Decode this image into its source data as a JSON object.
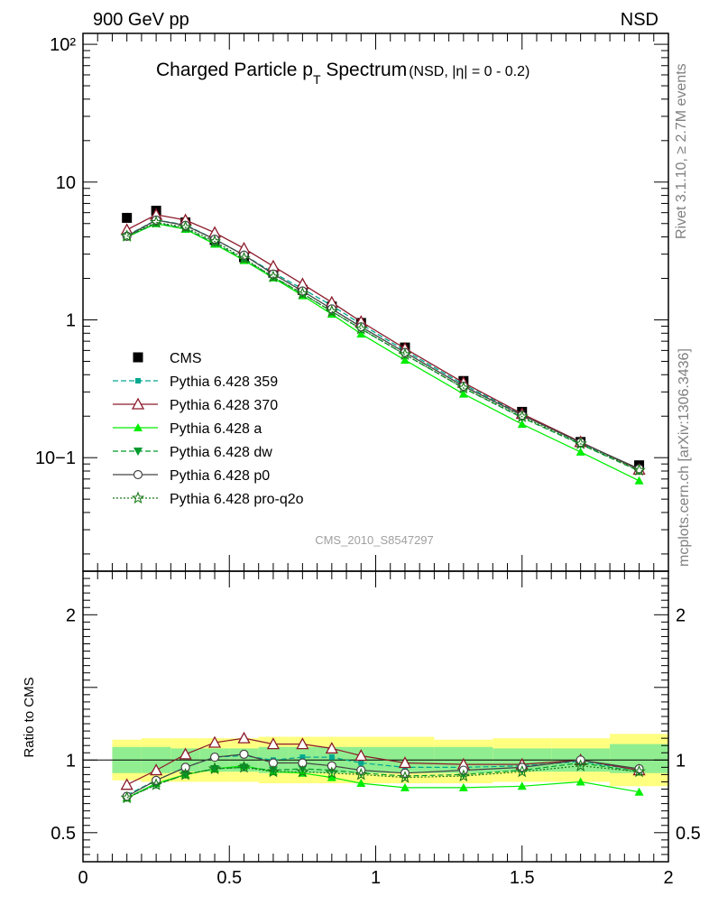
{
  "header": {
    "left": "900 GeV pp",
    "right": "NSD"
  },
  "side_text": {
    "rivet": "Rivet 3.1.10, ≥ 2.7M events",
    "mcplots": "mcplots.cern.ch [arXiv:1306.3436]"
  },
  "chart_data": [
    {
      "type": "scatter",
      "title": "Charged Particle p_T Spectrum",
      "title_parts": {
        "main": "Charged Particle p",
        "sub": "T",
        "tail": " Spectrum",
        "qualifier": "(NSD, |η| =    0 - 0.2)"
      },
      "watermark": "CMS_2010_S8547297",
      "xlabel": "",
      "ylabel": "",
      "yscale": "log",
      "xlim": [
        0,
        2
      ],
      "ylim": [
        0.015,
        120
      ],
      "y_tick_labels": [
        "10−1",
        "1",
        "10",
        "10²"
      ],
      "x": [
        0.15,
        0.25,
        0.35,
        0.45,
        0.55,
        0.65,
        0.75,
        0.85,
        0.95,
        1.1,
        1.3,
        1.5,
        1.7,
        1.9
      ],
      "series": [
        {
          "name": "CMS",
          "style": "data",
          "color": "#000000",
          "values": [
            5.5,
            6.2,
            5.1,
            3.8,
            2.85,
            2.2,
            1.65,
            1.25,
            0.95,
            0.63,
            0.36,
            0.215,
            0.13,
            0.088
          ]
        },
        {
          "name": "Pythia 6.428 359",
          "style": "square-dashed",
          "color": "#00a88f",
          "values": [
            4.1,
            5.3,
            4.9,
            3.85,
            2.95,
            2.2,
            1.68,
            1.27,
            0.93,
            0.6,
            0.34,
            0.205,
            0.128,
            0.082
          ]
        },
        {
          "name": "Pythia 6.428 370",
          "style": "open-triangle-solid",
          "color": "#8b1a2a",
          "values": [
            4.5,
            5.8,
            5.3,
            4.3,
            3.3,
            2.45,
            1.82,
            1.34,
            0.97,
            0.62,
            0.35,
            0.208,
            0.13,
            0.082
          ]
        },
        {
          "name": "Pythia 6.428 a",
          "style": "triangle-solid",
          "color": "#00ee00",
          "values": [
            4.0,
            5.0,
            4.55,
            3.55,
            2.7,
            2.02,
            1.5,
            1.1,
            0.79,
            0.51,
            0.29,
            0.175,
            0.11,
            0.068
          ]
        },
        {
          "name": "Pythia 6.428 dw",
          "style": "down-triangle-dashed",
          "color": "#009a2e",
          "values": [
            4.0,
            5.05,
            4.6,
            3.6,
            2.75,
            2.05,
            1.55,
            1.15,
            0.86,
            0.56,
            0.32,
            0.195,
            0.125,
            0.08
          ]
        },
        {
          "name": "Pythia 6.428 p0",
          "style": "open-circle-solid",
          "color": "#444444",
          "values": [
            4.05,
            5.3,
            4.85,
            3.85,
            2.95,
            2.15,
            1.62,
            1.2,
            0.89,
            0.58,
            0.33,
            0.203,
            0.129,
            0.083
          ]
        },
        {
          "name": "Pythia 6.428 pro-q2o",
          "style": "open-star-dotted",
          "color": "#1a7a1a",
          "values": [
            4.05,
            5.1,
            4.7,
            3.7,
            2.8,
            2.05,
            1.55,
            1.15,
            0.86,
            0.56,
            0.32,
            0.198,
            0.126,
            0.081
          ]
        }
      ]
    },
    {
      "type": "line",
      "title": "",
      "xlabel": "",
      "ylabel": "Ratio to CMS",
      "xlim": [
        0,
        2
      ],
      "ylim": [
        0.3,
        2.3
      ],
      "x_ticks": [
        0,
        0.5,
        1,
        1.5,
        2
      ],
      "x_tick_labels": [
        "0",
        "0.5",
        "1",
        "1.5",
        "2"
      ],
      "y_ticks": [
        0.5,
        1,
        2
      ],
      "y_tick_labels": [
        "0.5",
        "1",
        "2"
      ],
      "reference_line": 1,
      "uncertainty_bands": {
        "bins": [
          [
            0.1,
            0.2
          ],
          [
            0.2,
            0.3
          ],
          [
            0.3,
            0.4
          ],
          [
            0.4,
            0.5
          ],
          [
            0.5,
            0.6
          ],
          [
            0.6,
            0.7
          ],
          [
            0.7,
            0.8
          ],
          [
            0.8,
            0.9
          ],
          [
            0.9,
            1.0
          ],
          [
            1.0,
            1.2
          ],
          [
            1.2,
            1.4
          ],
          [
            1.4,
            1.6
          ],
          [
            1.6,
            1.8
          ],
          [
            1.8,
            2.0
          ]
        ],
        "stat_color": "#90ee90",
        "total_color": "#ffff80",
        "stat_low": [
          0.91,
          0.91,
          0.92,
          0.92,
          0.92,
          0.91,
          0.91,
          0.91,
          0.91,
          0.91,
          0.91,
          0.92,
          0.92,
          0.91
        ],
        "stat_high": [
          1.09,
          1.09,
          1.08,
          1.08,
          1.08,
          1.09,
          1.09,
          1.09,
          1.09,
          1.09,
          1.09,
          1.08,
          1.08,
          1.11
        ],
        "total_low": [
          0.86,
          0.85,
          0.85,
          0.85,
          0.85,
          0.84,
          0.84,
          0.84,
          0.84,
          0.84,
          0.84,
          0.85,
          0.85,
          0.82
        ],
        "total_high": [
          1.14,
          1.15,
          1.15,
          1.15,
          1.15,
          1.16,
          1.16,
          1.16,
          1.16,
          1.16,
          1.14,
          1.15,
          1.15,
          1.18
        ]
      },
      "x": [
        0.15,
        0.25,
        0.35,
        0.45,
        0.55,
        0.65,
        0.75,
        0.85,
        0.95,
        1.1,
        1.3,
        1.5,
        1.7,
        1.9
      ],
      "series": [
        {
          "name": "Pythia 6.428 359",
          "style": "square-dashed",
          "color": "#00a88f",
          "values": [
            0.76,
            0.86,
            0.95,
            1.02,
            1.03,
            1.0,
            1.02,
            1.02,
            0.98,
            0.95,
            0.95,
            0.96,
            0.99,
            0.93
          ]
        },
        {
          "name": "Pythia 6.428 370",
          "style": "open-triangle-solid",
          "color": "#8b1a2a",
          "values": [
            0.83,
            0.93,
            1.04,
            1.12,
            1.15,
            1.11,
            1.11,
            1.08,
            1.03,
            0.98,
            0.97,
            0.97,
            1.0,
            0.93
          ]
        },
        {
          "name": "Pythia 6.428 a",
          "style": "triangle-solid",
          "color": "#00ee00",
          "values": [
            0.74,
            0.84,
            0.9,
            0.94,
            0.96,
            0.92,
            0.91,
            0.88,
            0.84,
            0.81,
            0.81,
            0.82,
            0.85,
            0.78
          ]
        },
        {
          "name": "Pythia 6.428 dw",
          "style": "down-triangle-dashed",
          "color": "#009a2e",
          "values": [
            0.74,
            0.83,
            0.9,
            0.94,
            0.95,
            0.93,
            0.94,
            0.93,
            0.91,
            0.89,
            0.9,
            0.93,
            0.98,
            0.92
          ]
        },
        {
          "name": "Pythia 6.428 p0",
          "style": "open-circle-solid",
          "color": "#444444",
          "values": [
            0.75,
            0.86,
            0.95,
            1.02,
            1.04,
            0.98,
            0.98,
            0.96,
            0.93,
            0.91,
            0.93,
            0.95,
            1.0,
            0.94
          ]
        },
        {
          "name": "Pythia 6.428 pro-q2o",
          "style": "open-star-dotted",
          "color": "#1a7a1a",
          "values": [
            0.74,
            0.83,
            0.9,
            0.94,
            0.95,
            0.92,
            0.92,
            0.91,
            0.9,
            0.88,
            0.89,
            0.92,
            0.96,
            0.92
          ]
        }
      ]
    }
  ]
}
